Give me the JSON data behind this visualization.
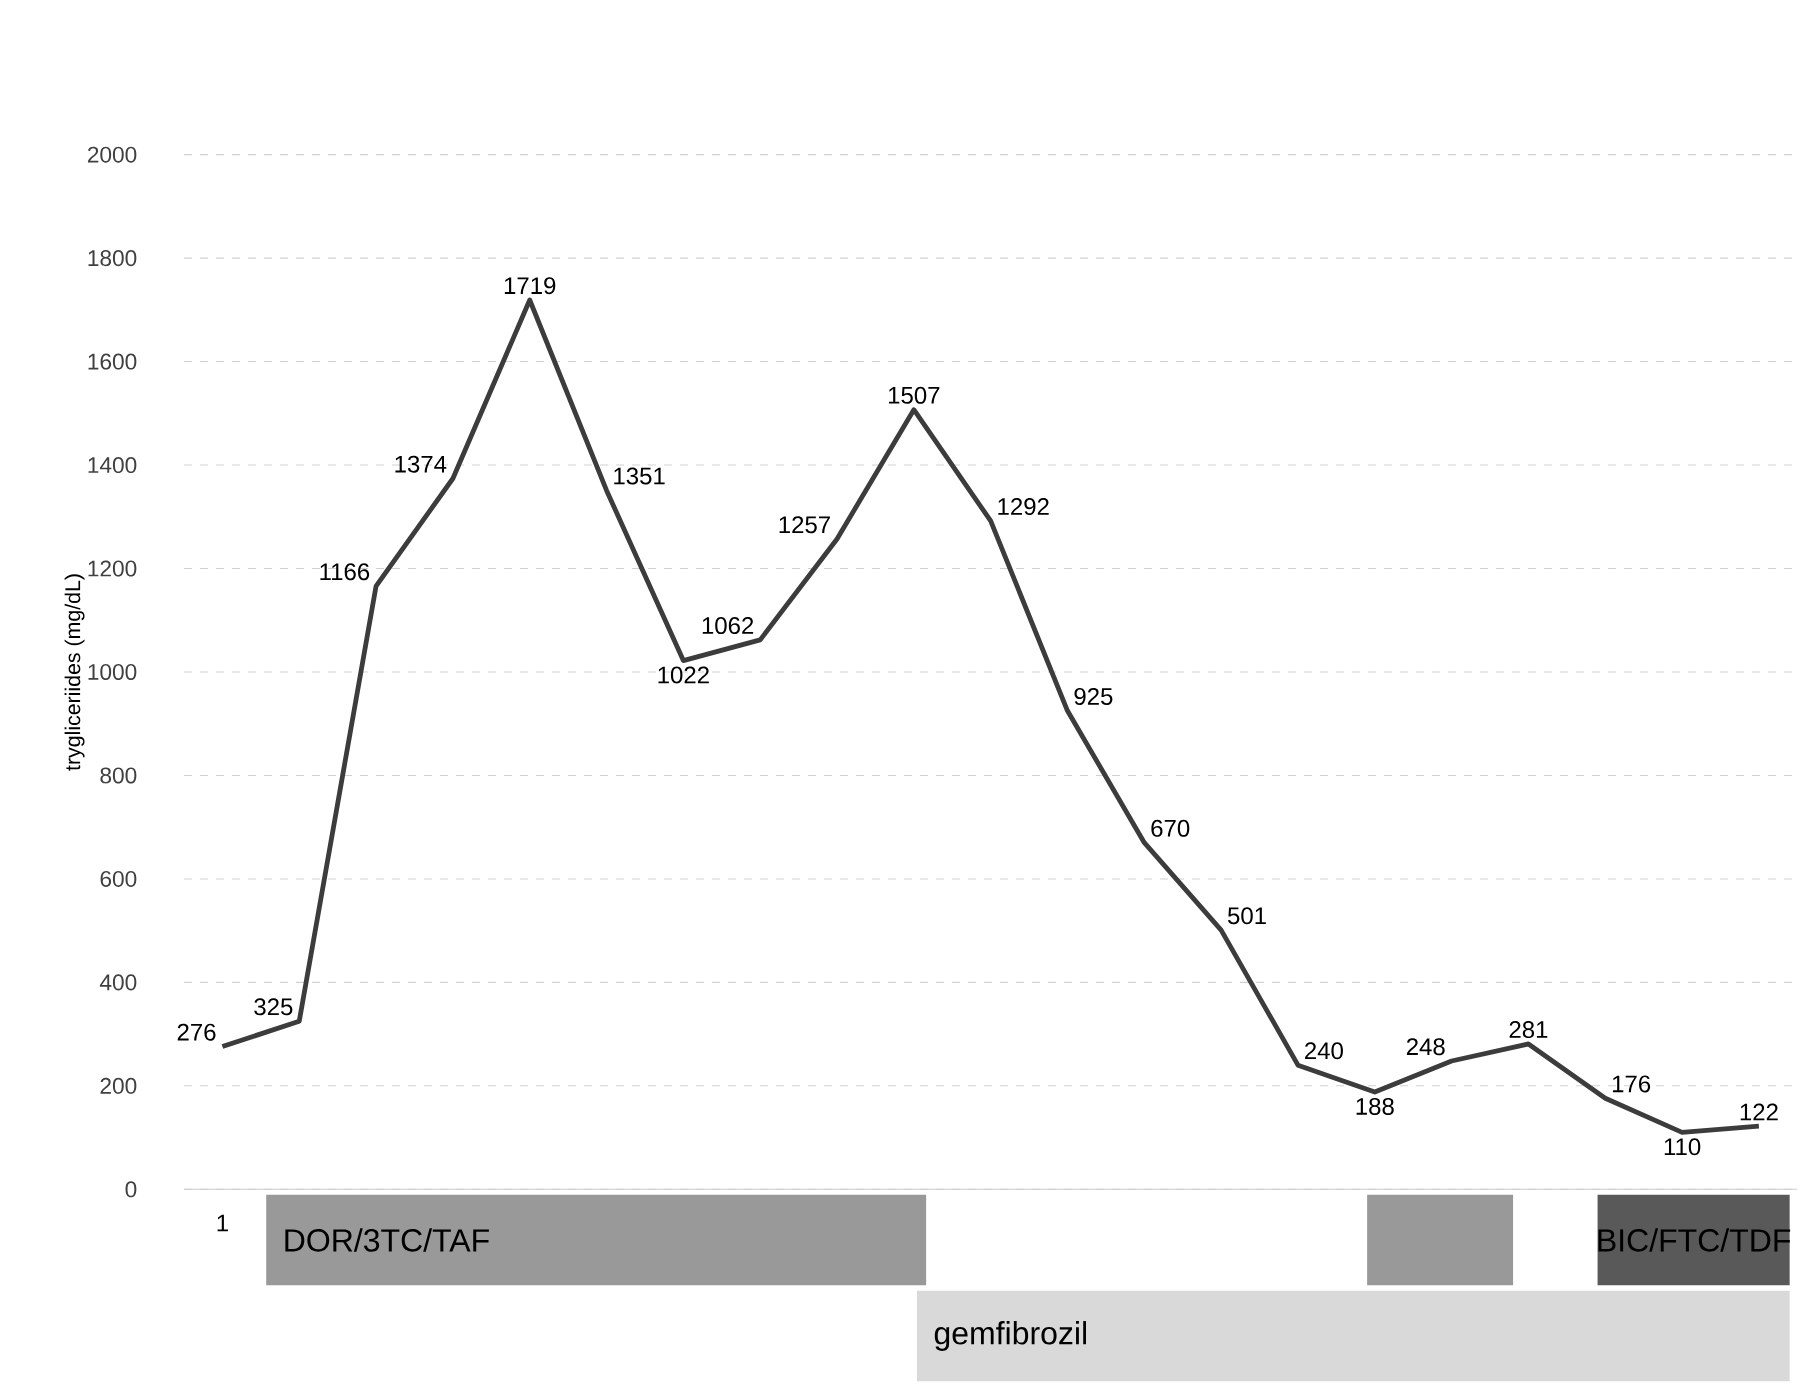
{
  "chart_data": {
    "type": "line",
    "ylabel": "trygliceriides (mg/dL)",
    "categories": [
      "1",
      null,
      null,
      null,
      null,
      null,
      null,
      null,
      null,
      null,
      null,
      null,
      null,
      null,
      null,
      null,
      null,
      null,
      null,
      null,
      null
    ],
    "values": [
      276,
      325,
      1166,
      1374,
      1719,
      1351,
      1022,
      1062,
      1257,
      1507,
      1292,
      925,
      670,
      501,
      240,
      188,
      248,
      281,
      176,
      110,
      122
    ],
    "color": "#3c3c3c",
    "ylim": [
      0,
      2000
    ],
    "yticks": [
      0,
      200,
      400,
      600,
      800,
      1000,
      1200,
      1400,
      1600,
      1800,
      2000
    ],
    "grid": "y",
    "data_labels": true,
    "marker": "none",
    "line_style": "solid",
    "annotations": [
      "DOR/3TC/TAF",
      "BIC/FTC/TDF",
      "gemfibrozil"
    ]
  }
}
